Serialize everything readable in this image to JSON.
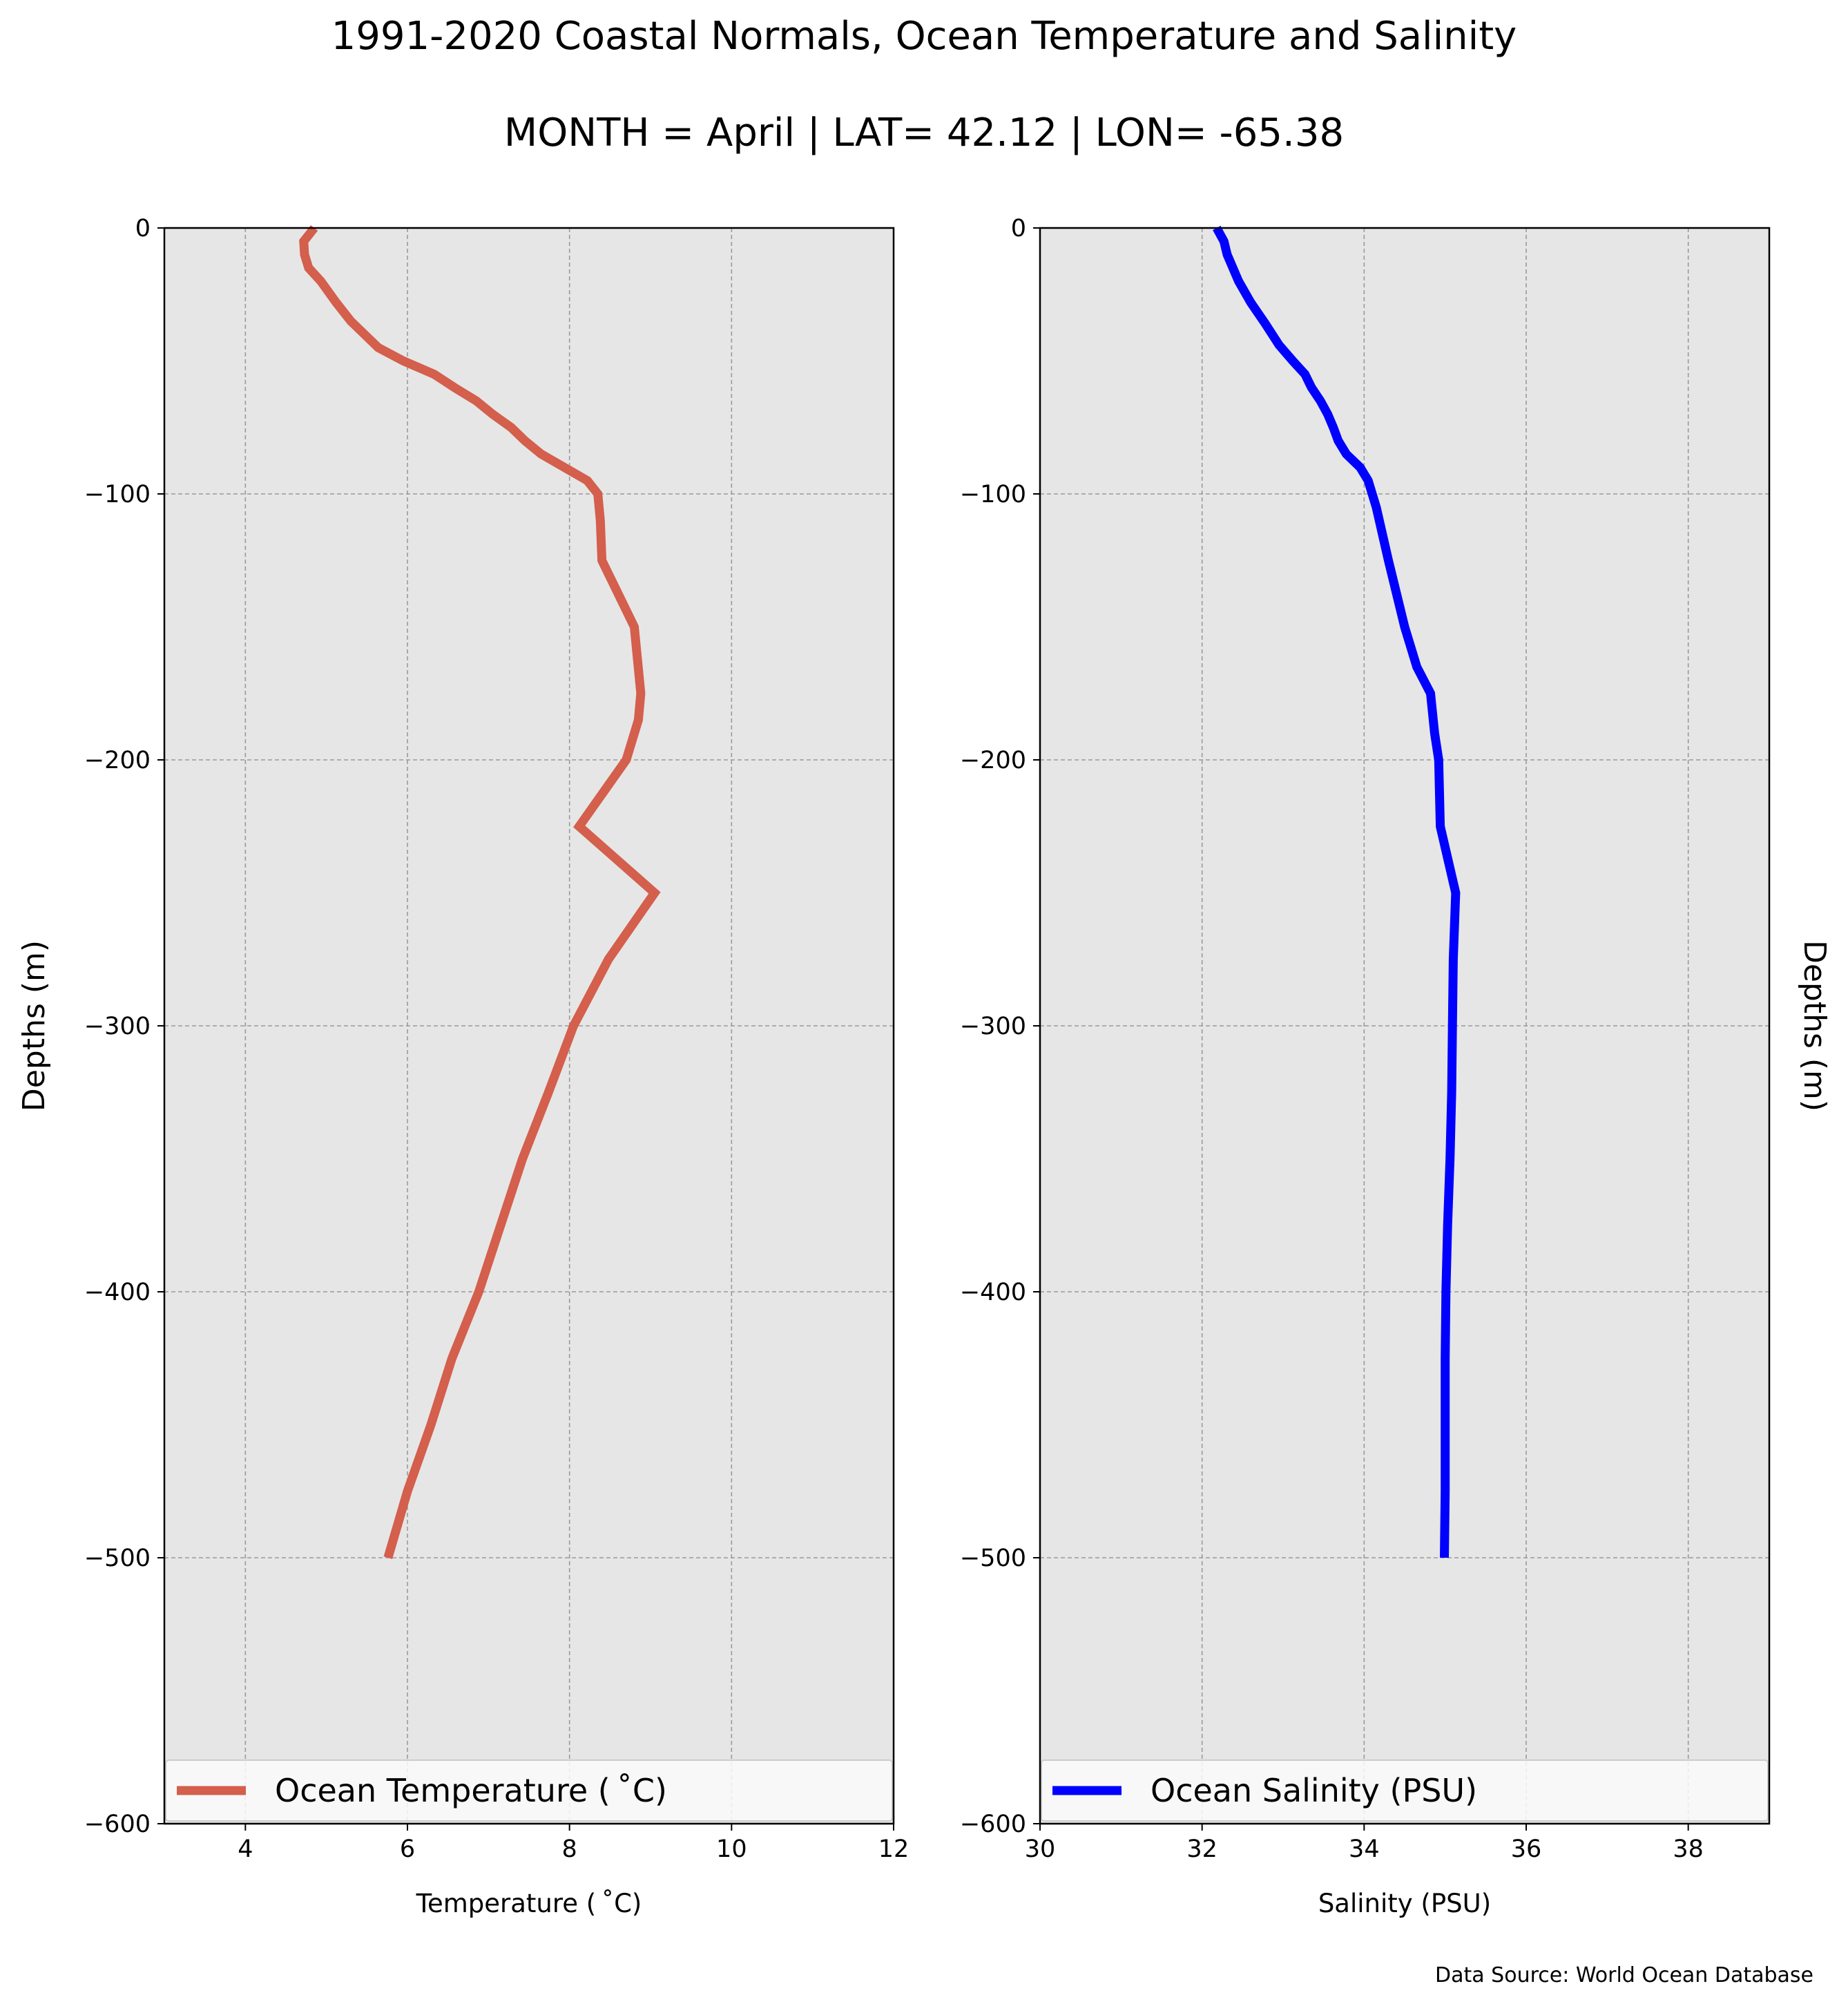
{
  "title": "1991-2020 Coastal Normals, Ocean Temperature and Salinity",
  "subtitle": "MONTH = April | LAT= 42.12 | LON= -65.38",
  "source": "Data Source: World Ocean Database",
  "colors": {
    "background": "#e6e6e6",
    "temperature": "#d35f4c",
    "salinity": "#0000ff",
    "grid": "#9a9a9a"
  },
  "chart_data": [
    {
      "type": "line",
      "xlabel": "Temperature ($^\\circ$C)",
      "ylabel": "Depths (m)",
      "xlim": [
        3,
        12
      ],
      "ylim": [
        -600,
        0
      ],
      "xticks": [
        4,
        6,
        8,
        10,
        12
      ],
      "xtick_labels": [
        "4",
        "6",
        "8",
        "10",
        "12"
      ],
      "yticks": [
        0,
        -100,
        -200,
        -300,
        -400,
        -500,
        -600
      ],
      "ytick_labels": [
        "0",
        "−100",
        "−200",
        "−300",
        "−400",
        "−500",
        "−600"
      ],
      "grid": true,
      "legend_position": "lower center",
      "series": [
        {
          "name": "Ocean Temperature ($^\\circ$C)",
          "x": [
            4.85,
            4.72,
            4.73,
            4.78,
            4.93,
            5.12,
            5.3,
            5.64,
            5.95,
            6.33,
            6.58,
            6.85,
            7.05,
            7.28,
            7.45,
            7.65,
            8.22,
            8.35,
            8.38,
            8.4,
            8.8,
            8.88,
            8.85,
            8.7,
            8.12,
            9.05,
            8.48,
            8.05,
            7.74,
            7.42,
            7.15,
            6.88,
            6.55,
            6.29,
            6.0,
            5.76
          ],
          "y": [
            0,
            -5,
            -10,
            -15,
            -20,
            -28,
            -35,
            -45,
            -50,
            -55,
            -60,
            -65,
            -70,
            -75,
            -80,
            -85,
            -95,
            -100,
            -110,
            -125,
            -150,
            -175,
            -185,
            -200,
            -225,
            -250,
            -275,
            -300,
            -325,
            -350,
            -375,
            -400,
            -425,
            -450,
            -475,
            -500
          ]
        }
      ]
    },
    {
      "type": "line",
      "xlabel": "Salinity (PSU)",
      "ylabel": "Depths (m)",
      "xlim": [
        30,
        39
      ],
      "ylim": [
        -600,
        0
      ],
      "xticks": [
        30,
        32,
        34,
        36,
        38
      ],
      "xtick_labels": [
        "30",
        "32",
        "34",
        "36",
        "38"
      ],
      "yticks": [
        0,
        -100,
        -200,
        -300,
        -400,
        -500,
        -600
      ],
      "ytick_labels": [
        "0",
        "−100",
        "−200",
        "−300",
        "−400",
        "−500",
        "−600"
      ],
      "grid": true,
      "legend_position": "lower center",
      "series": [
        {
          "name": "Ocean Salinity (PSU)",
          "x": [
            32.18,
            32.27,
            32.31,
            32.45,
            32.6,
            32.78,
            32.95,
            33.12,
            33.27,
            33.35,
            33.46,
            33.55,
            33.62,
            33.68,
            33.78,
            33.95,
            34.05,
            34.15,
            34.3,
            34.5,
            34.65,
            34.82,
            34.87,
            34.92,
            34.94,
            35.13,
            35.1,
            35.09,
            35.08,
            35.06,
            35.03,
            35.01,
            35.0,
            35.0,
            35.0,
            34.99
          ],
          "y": [
            0,
            -5,
            -10,
            -20,
            -28,
            -36,
            -44,
            -50,
            -55,
            -60,
            -65,
            -70,
            -75,
            -80,
            -85,
            -90,
            -95,
            -105,
            -125,
            -150,
            -165,
            -175,
            -190,
            -200,
            -225,
            -250,
            -275,
            -300,
            -325,
            -350,
            -375,
            -400,
            -425,
            -450,
            -475,
            -500
          ]
        }
      ]
    }
  ]
}
